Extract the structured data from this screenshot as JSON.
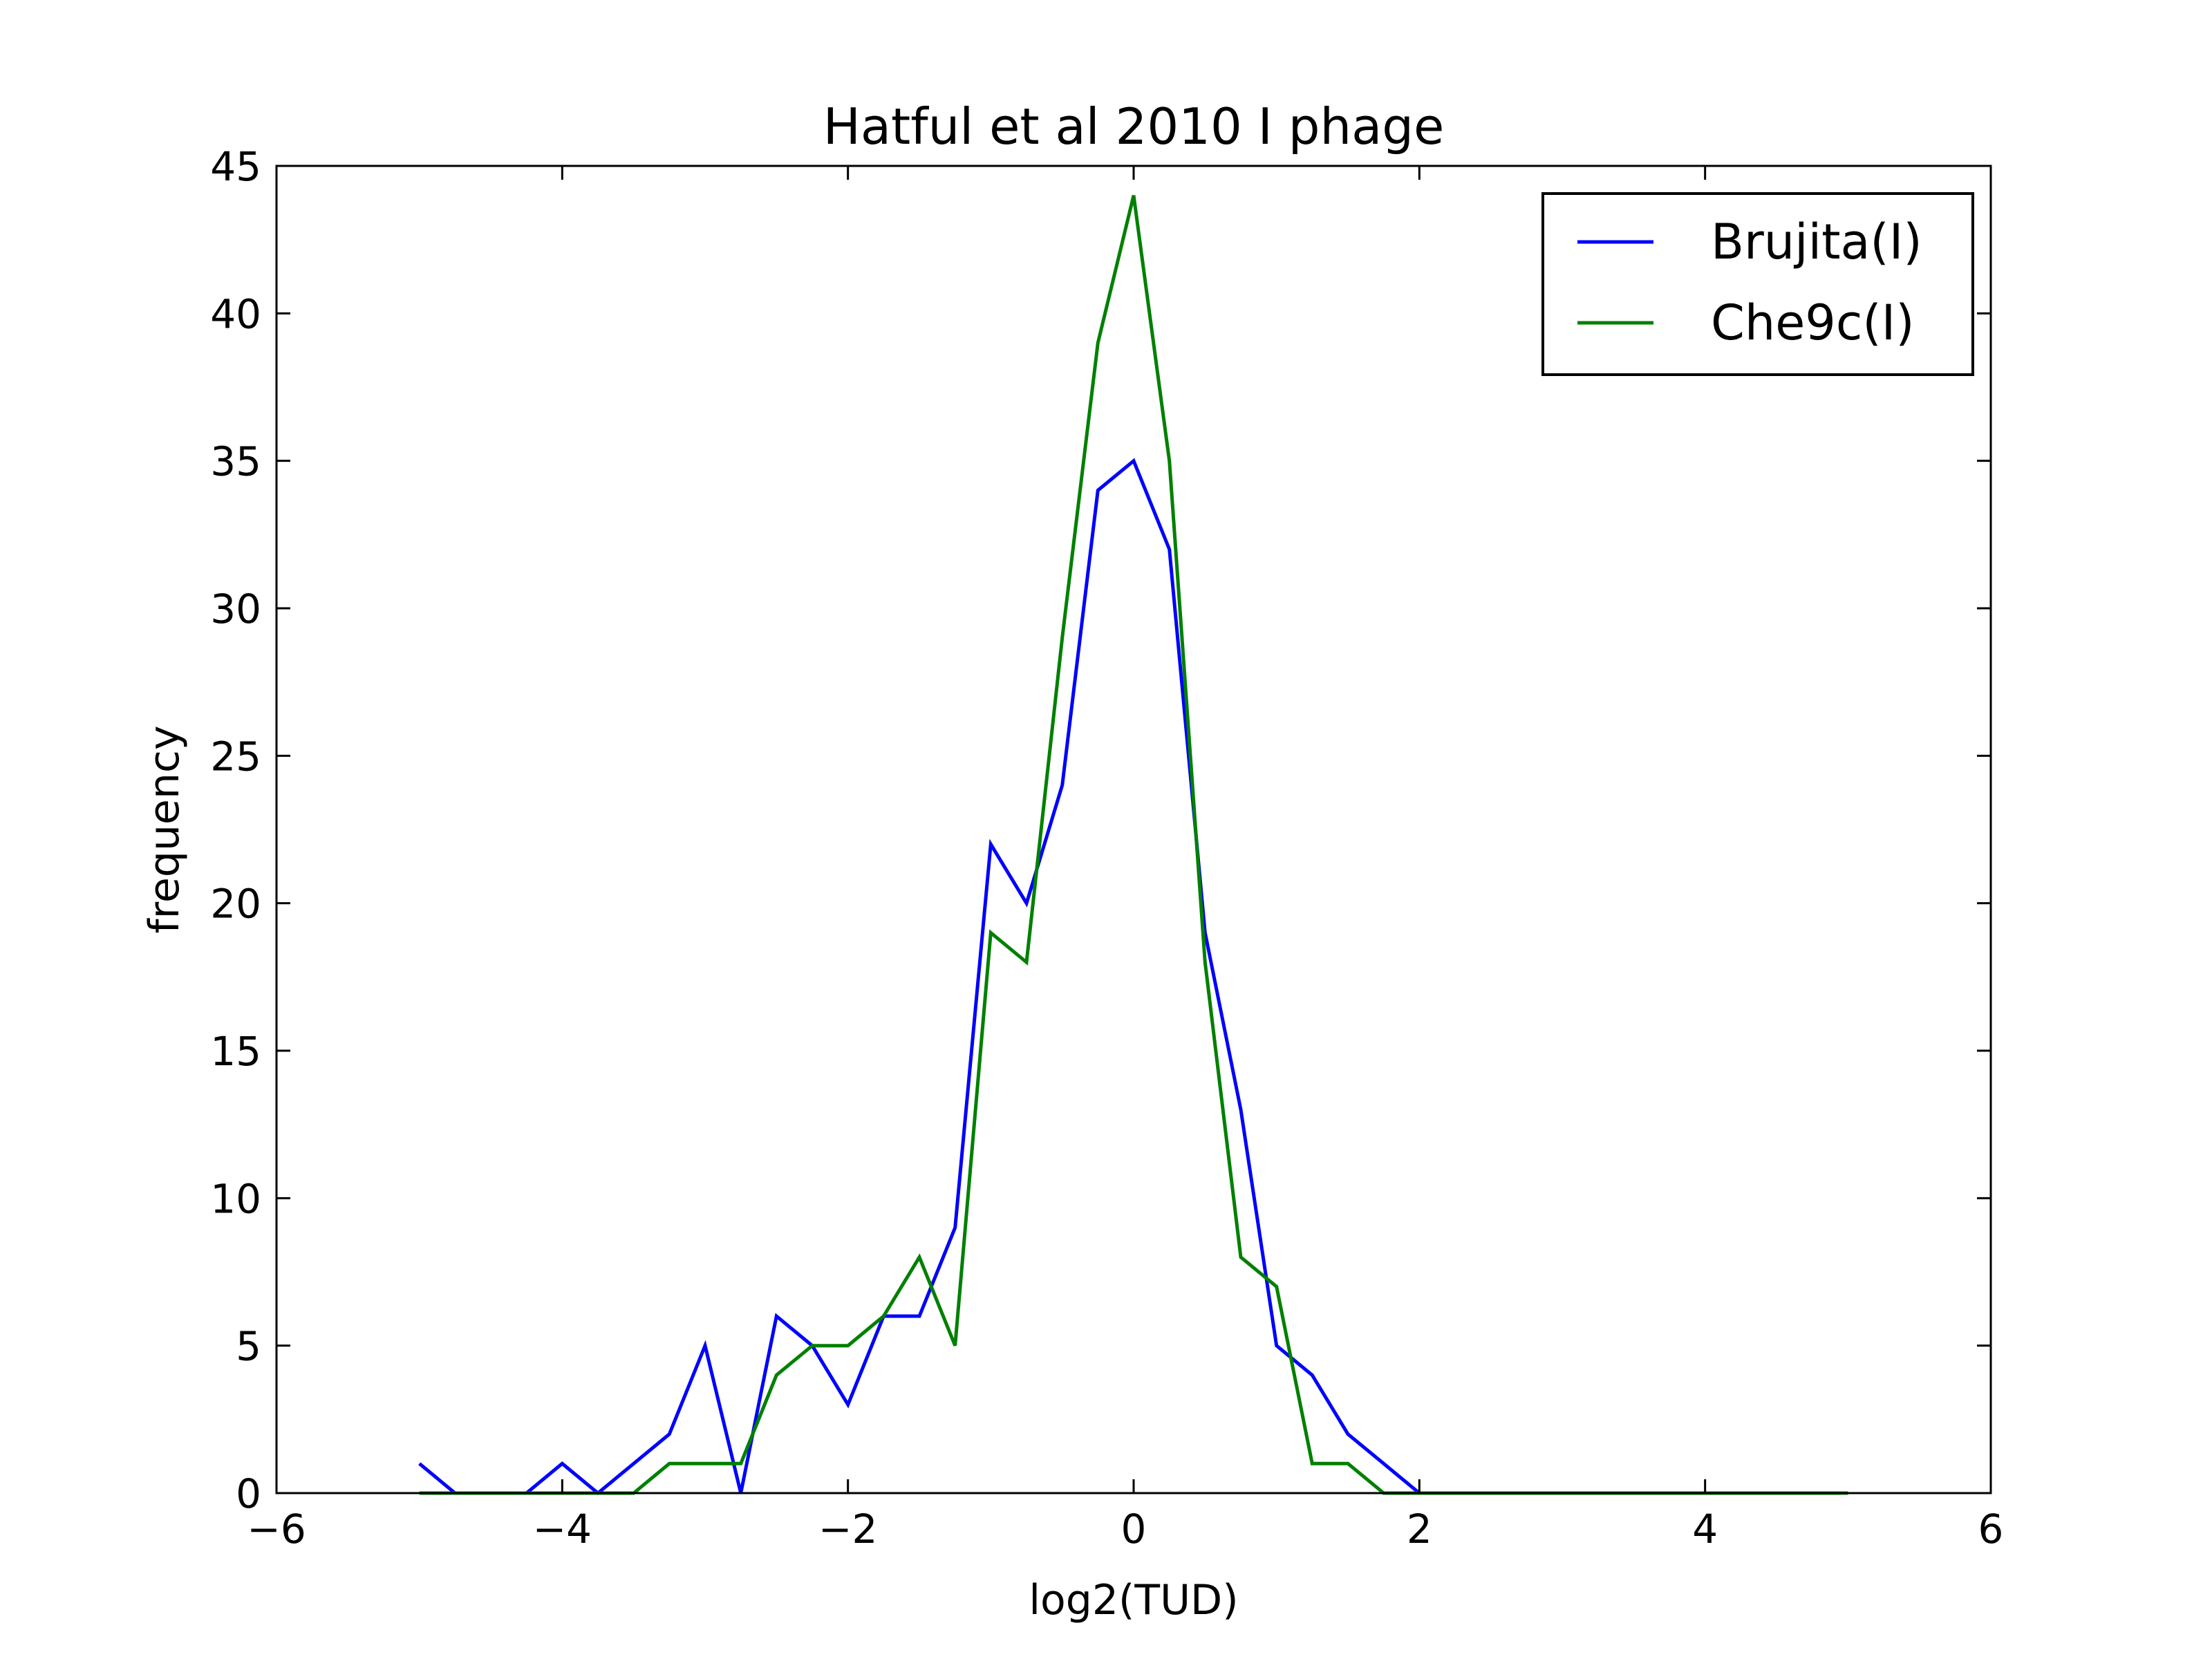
{
  "chart_data": {
    "type": "line",
    "title": "Hatful et al 2010 I phage",
    "xlabel": "log2(TUD)",
    "ylabel": "frequency",
    "xlim": [
      -6,
      6
    ],
    "ylim": [
      0,
      45
    ],
    "xticks": [
      -6,
      -4,
      -2,
      0,
      2,
      4,
      6
    ],
    "xtick_labels": [
      "−6",
      "−4",
      "−2",
      "0",
      "2",
      "4",
      "6"
    ],
    "yticks": [
      0,
      5,
      10,
      15,
      20,
      25,
      30,
      35,
      40,
      45
    ],
    "ytick_labels": [
      "0",
      "5",
      "10",
      "15",
      "20",
      "25",
      "30",
      "35",
      "40",
      "45"
    ],
    "grid": false,
    "legend_position": "top-right",
    "x": [
      -5.0,
      -4.75,
      -4.5,
      -4.25,
      -4.0,
      -3.75,
      -3.5,
      -3.25,
      -3.0,
      -2.75,
      -2.5,
      -2.25,
      -2.0,
      -1.75,
      -1.5,
      -1.25,
      -1.0,
      -0.75,
      -0.5,
      -0.25,
      0.0,
      0.25,
      0.5,
      0.75,
      1.0,
      1.25,
      1.5,
      1.75,
      2.0,
      2.25,
      2.5,
      2.75,
      3.0,
      3.25,
      3.5,
      3.75,
      4.0,
      4.25,
      4.5,
      4.75,
      5.0
    ],
    "series": [
      {
        "name": "Brujita(I)",
        "color": "#0000ff",
        "values": [
          1,
          0,
          0,
          0,
          1,
          0,
          1,
          2,
          5,
          0,
          6,
          5,
          3,
          6,
          6,
          9,
          22,
          20,
          24,
          34,
          35,
          32,
          19,
          13,
          5,
          4,
          2,
          1,
          0,
          0,
          0,
          0,
          0,
          0,
          0,
          0,
          0,
          0,
          0,
          0,
          0
        ]
      },
      {
        "name": "Che9c(I)",
        "color": "#008000",
        "values": [
          0,
          0,
          0,
          0,
          0,
          0,
          0,
          1,
          1,
          1,
          4,
          5,
          5,
          6,
          8,
          5,
          19,
          18,
          29,
          39,
          44,
          35,
          18,
          8,
          7,
          1,
          1,
          0,
          0,
          0,
          0,
          0,
          0,
          0,
          0,
          0,
          0,
          0,
          0,
          0,
          0
        ]
      }
    ]
  }
}
